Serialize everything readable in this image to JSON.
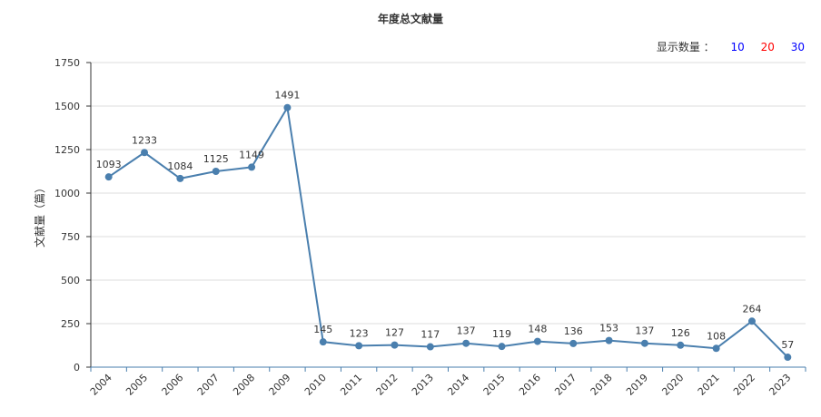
{
  "header": {
    "title": "年度总文献量",
    "display_label": "显示数量 ：",
    "options": [
      {
        "label": "10",
        "color": "#0000ff"
      },
      {
        "label": "20",
        "color": "#ff0000"
      },
      {
        "label": "30",
        "color": "#0000ff"
      }
    ]
  },
  "chart_data": {
    "type": "line",
    "title": "年度总文献量",
    "xlabel": "",
    "ylabel": "文献量（篇）",
    "ylim": [
      0,
      1750
    ],
    "yticks": [
      0,
      250,
      500,
      750,
      1000,
      1250,
      1500,
      1750
    ],
    "grid": true,
    "line_color": "#4a7fae",
    "categories": [
      "2004",
      "2005",
      "2006",
      "2007",
      "2008",
      "2009",
      "2010",
      "2011",
      "2012",
      "2013",
      "2014",
      "2015",
      "2016",
      "2017",
      "2018",
      "2019",
      "2020",
      "2021",
      "2022",
      "2023"
    ],
    "values": [
      1093,
      1233,
      1084,
      1125,
      1149,
      1491,
      145,
      123,
      127,
      117,
      137,
      119,
      148,
      136,
      153,
      137,
      126,
      108,
      264,
      57
    ]
  }
}
